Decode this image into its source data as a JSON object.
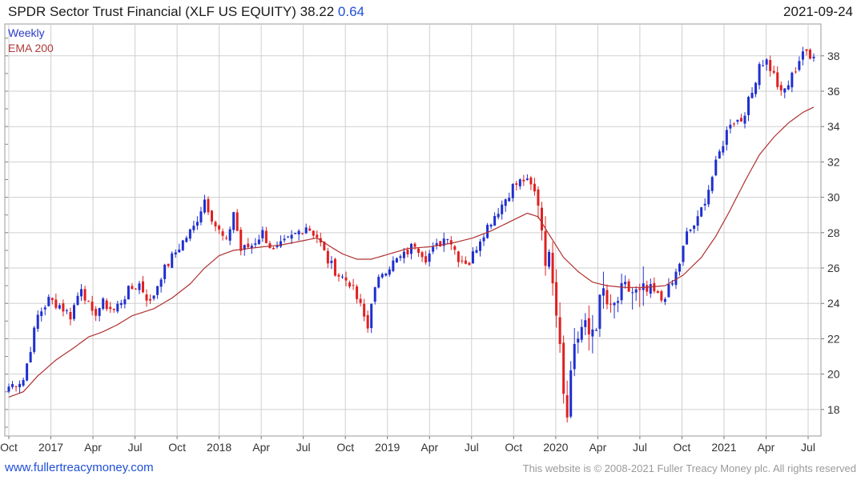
{
  "header": {
    "title": "SPDR Sector Trust Financial (XLF US EQUITY) 38.22",
    "change": "0.64",
    "date": "2021-09-24"
  },
  "legend": {
    "weekly": "Weekly",
    "ema": "EMA 200"
  },
  "footer": {
    "website": "www.fullertreacymoney.com",
    "copyright": "This website is © 2008-2021 Fuller Treacy Money plc. All rights reserved"
  },
  "colors": {
    "up": "#1f2fd0",
    "down": "#e02020",
    "ema": "#b03030",
    "grid": "#cfcfcf"
  },
  "chart_data": {
    "type": "candlestick",
    "frequency": "weekly",
    "ylim": [
      16.5,
      39.8
    ],
    "yticks": [
      18,
      20,
      22,
      24,
      26,
      28,
      30,
      32,
      34,
      36,
      38
    ],
    "xticks": [
      "Oct",
      "2017",
      "Apr",
      "Jul",
      "Oct",
      "2018",
      "Apr",
      "Jul",
      "Oct",
      "2019",
      "Apr",
      "Jul",
      "Oct",
      "2020",
      "Apr",
      "Jul",
      "Oct",
      "2021",
      "Apr",
      "Jul"
    ],
    "close_path": [
      [
        0,
        19.3
      ],
      [
        4,
        19.7
      ],
      [
        8,
        23.3
      ],
      [
        11,
        24.2
      ],
      [
        14,
        23.9
      ],
      [
        17,
        23.3
      ],
      [
        20,
        25.0
      ],
      [
        23,
        23.3
      ],
      [
        26,
        24.0
      ],
      [
        29,
        23.6
      ],
      [
        33,
        24.7
      ],
      [
        36,
        25.1
      ],
      [
        39,
        24.0
      ],
      [
        42,
        25.6
      ],
      [
        45,
        26.6
      ],
      [
        48,
        27.5
      ],
      [
        51,
        28.3
      ],
      [
        54,
        29.9
      ],
      [
        57,
        28.4
      ],
      [
        60,
        27.4
      ],
      [
        62,
        29.2
      ],
      [
        64,
        27.0
      ],
      [
        67,
        27.3
      ],
      [
        70,
        28.0
      ],
      [
        73,
        26.9
      ],
      [
        76,
        27.4
      ],
      [
        79,
        27.9
      ],
      [
        82,
        28.4
      ],
      [
        85,
        27.8
      ],
      [
        88,
        26.4
      ],
      [
        91,
        25.6
      ],
      [
        94,
        25.2
      ],
      [
        97,
        23.8
      ],
      [
        99,
        22.6
      ],
      [
        100,
        24.2
      ],
      [
        103,
        25.8
      ],
      [
        106,
        26.3
      ],
      [
        109,
        26.7
      ],
      [
        112,
        27.4
      ],
      [
        115,
        26.6
      ],
      [
        118,
        27.2
      ],
      [
        121,
        27.9
      ],
      [
        124,
        26.6
      ],
      [
        127,
        26.3
      ],
      [
        130,
        27.7
      ],
      [
        133,
        28.7
      ],
      [
        136,
        29.6
      ],
      [
        139,
        30.6
      ],
      [
        142,
        31.0
      ],
      [
        144,
        30.6
      ],
      [
        146,
        29.9
      ],
      [
        148,
        26.8
      ],
      [
        150,
        25.8
      ],
      [
        152,
        22.2
      ],
      [
        153,
        19.2
      ],
      [
        154,
        18.3
      ],
      [
        156,
        21.8
      ],
      [
        158,
        22.6
      ],
      [
        160,
        22.2
      ],
      [
        162,
        23.1
      ],
      [
        164,
        24.6
      ],
      [
        166,
        23.3
      ],
      [
        168,
        24.2
      ],
      [
        171,
        24.8
      ],
      [
        174,
        24.3
      ],
      [
        177,
        24.8
      ],
      [
        180,
        24.2
      ],
      [
        183,
        25.1
      ],
      [
        185,
        26.3
      ],
      [
        187,
        27.9
      ],
      [
        190,
        28.7
      ],
      [
        193,
        30.5
      ],
      [
        196,
        32.5
      ],
      [
        199,
        34.3
      ],
      [
        202,
        34.4
      ],
      [
        205,
        35.9
      ],
      [
        207,
        37.6
      ],
      [
        209,
        37.7
      ],
      [
        211,
        36.9
      ],
      [
        213,
        35.8
      ],
      [
        215,
        36.4
      ],
      [
        217,
        37.3
      ],
      [
        219,
        38.3
      ],
      [
        221,
        37.8
      ],
      [
        222,
        38.2
      ]
    ],
    "ema_path": [
      [
        0,
        18.7
      ],
      [
        4,
        19.0
      ],
      [
        8,
        19.9
      ],
      [
        13,
        20.8
      ],
      [
        18,
        21.5
      ],
      [
        22,
        22.1
      ],
      [
        26,
        22.4
      ],
      [
        30,
        22.8
      ],
      [
        34,
        23.3
      ],
      [
        40,
        23.7
      ],
      [
        45,
        24.3
      ],
      [
        50,
        25.1
      ],
      [
        54,
        26.0
      ],
      [
        58,
        26.7
      ],
      [
        62,
        27.0
      ],
      [
        66,
        27.1
      ],
      [
        70,
        27.2
      ],
      [
        75,
        27.3
      ],
      [
        80,
        27.5
      ],
      [
        85,
        27.7
      ],
      [
        88,
        27.3
      ],
      [
        92,
        26.8
      ],
      [
        96,
        26.5
      ],
      [
        100,
        26.5
      ],
      [
        105,
        26.8
      ],
      [
        110,
        27.1
      ],
      [
        116,
        27.2
      ],
      [
        122,
        27.4
      ],
      [
        128,
        27.7
      ],
      [
        133,
        28.1
      ],
      [
        138,
        28.6
      ],
      [
        143,
        29.1
      ],
      [
        146,
        28.9
      ],
      [
        149,
        27.9
      ],
      [
        153,
        26.6
      ],
      [
        157,
        25.8
      ],
      [
        161,
        25.2
      ],
      [
        165,
        25.0
      ],
      [
        170,
        24.9
      ],
      [
        175,
        24.9
      ],
      [
        181,
        25.0
      ],
      [
        186,
        25.6
      ],
      [
        191,
        26.6
      ],
      [
        195,
        27.8
      ],
      [
        199,
        29.3
      ],
      [
        203,
        30.9
      ],
      [
        207,
        32.4
      ],
      [
        211,
        33.4
      ],
      [
        215,
        34.2
      ],
      [
        219,
        34.8
      ],
      [
        222,
        35.1
      ]
    ]
  }
}
